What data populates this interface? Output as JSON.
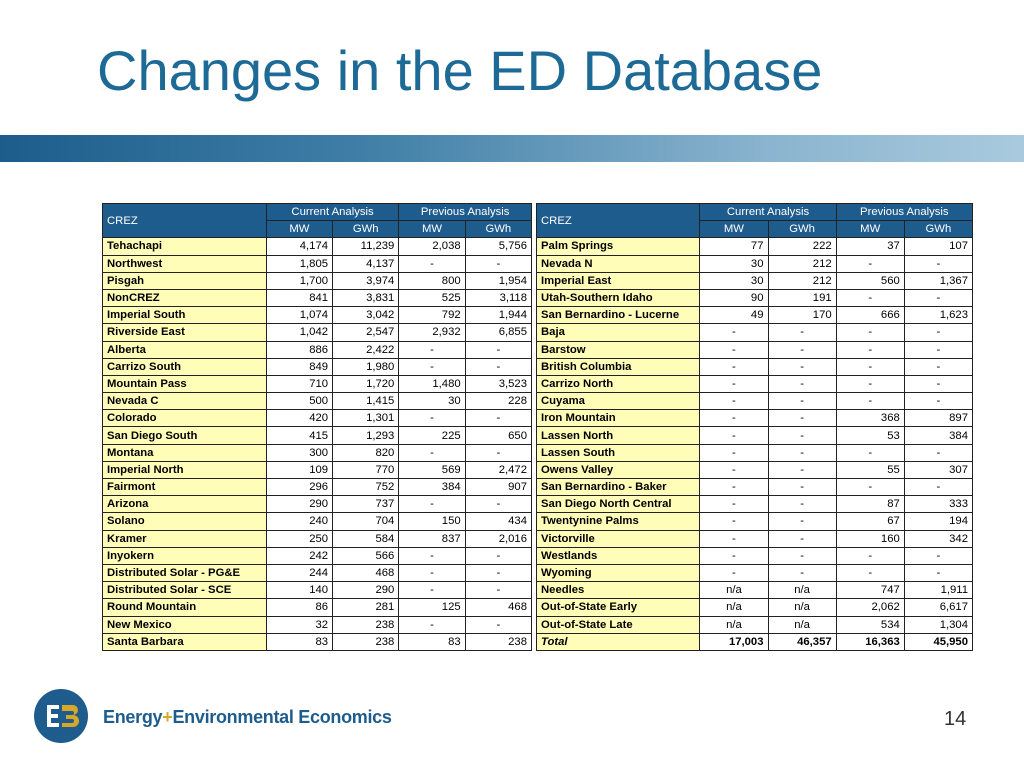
{
  "slide": {
    "title": "Changes in the ED Database",
    "page_number": "14",
    "company": {
      "part1": "Energy",
      "plus": "+",
      "part2": "Environmental Economics"
    }
  },
  "headers": {
    "crez": "CREZ",
    "current": "Current Analysis",
    "previous": "Previous Analysis",
    "mw": "MW",
    "gwh": "GWh"
  },
  "left_rows": [
    [
      "Tehachapi",
      "4,174",
      "11,239",
      "2,038",
      "5,756"
    ],
    [
      "Northwest",
      "1,805",
      "4,137",
      "-",
      "-"
    ],
    [
      "Pisgah",
      "1,700",
      "3,974",
      "800",
      "1,954"
    ],
    [
      "NonCREZ",
      "841",
      "3,831",
      "525",
      "3,118"
    ],
    [
      "Imperial South",
      "1,074",
      "3,042",
      "792",
      "1,944"
    ],
    [
      "Riverside East",
      "1,042",
      "2,547",
      "2,932",
      "6,855"
    ],
    [
      "Alberta",
      "886",
      "2,422",
      "-",
      "-"
    ],
    [
      "Carrizo South",
      "849",
      "1,980",
      "-",
      "-"
    ],
    [
      "Mountain Pass",
      "710",
      "1,720",
      "1,480",
      "3,523"
    ],
    [
      "Nevada C",
      "500",
      "1,415",
      "30",
      "228"
    ],
    [
      "Colorado",
      "420",
      "1,301",
      "-",
      "-"
    ],
    [
      "San Diego South",
      "415",
      "1,293",
      "225",
      "650"
    ],
    [
      "Montana",
      "300",
      "820",
      "-",
      "-"
    ],
    [
      "Imperial North",
      "109",
      "770",
      "569",
      "2,472"
    ],
    [
      "Fairmont",
      "296",
      "752",
      "384",
      "907"
    ],
    [
      "Arizona",
      "290",
      "737",
      "-",
      "-"
    ],
    [
      "Solano",
      "240",
      "704",
      "150",
      "434"
    ],
    [
      "Kramer",
      "250",
      "584",
      "837",
      "2,016"
    ],
    [
      "Inyokern",
      "242",
      "566",
      "-",
      "-"
    ],
    [
      "Distributed Solar - PG&E",
      "244",
      "468",
      "-",
      "-"
    ],
    [
      "Distributed Solar - SCE",
      "140",
      "290",
      "-",
      "-"
    ],
    [
      "Round Mountain",
      "86",
      "281",
      "125",
      "468"
    ],
    [
      "New Mexico",
      "32",
      "238",
      "-",
      "-"
    ],
    [
      "Santa Barbara",
      "83",
      "238",
      "83",
      "238"
    ]
  ],
  "right_rows": [
    [
      "Palm Springs",
      "77",
      "222",
      "37",
      "107"
    ],
    [
      "Nevada N",
      "30",
      "212",
      "-",
      "-"
    ],
    [
      "Imperial East",
      "30",
      "212",
      "560",
      "1,367"
    ],
    [
      "Utah-Southern Idaho",
      "90",
      "191",
      "-",
      "-"
    ],
    [
      "San Bernardino - Lucerne",
      "49",
      "170",
      "666",
      "1,623"
    ],
    [
      "Baja",
      "-",
      "-",
      "-",
      "-"
    ],
    [
      "Barstow",
      "-",
      "-",
      "-",
      "-"
    ],
    [
      "British Columbia",
      "-",
      "-",
      "-",
      "-"
    ],
    [
      "Carrizo North",
      "-",
      "-",
      "-",
      "-"
    ],
    [
      "Cuyama",
      "-",
      "-",
      "-",
      "-"
    ],
    [
      "Iron Mountain",
      "-",
      "-",
      "368",
      "897"
    ],
    [
      "Lassen North",
      "-",
      "-",
      "53",
      "384"
    ],
    [
      "Lassen South",
      "-",
      "-",
      "-",
      "-"
    ],
    [
      "Owens Valley",
      "-",
      "-",
      "55",
      "307"
    ],
    [
      "San Bernardino - Baker",
      "-",
      "-",
      "-",
      "-"
    ],
    [
      "San Diego North Central",
      "-",
      "-",
      "87",
      "333"
    ],
    [
      "Twentynine Palms",
      "-",
      "-",
      "67",
      "194"
    ],
    [
      "Victorville",
      "-",
      "-",
      "160",
      "342"
    ],
    [
      "Westlands",
      "-",
      "-",
      "-",
      "-"
    ],
    [
      "Wyoming",
      "-",
      "-",
      "-",
      "-"
    ],
    [
      "Needles",
      "n/a",
      "n/a",
      "747",
      "1,911"
    ],
    [
      "Out-of-State Early",
      "n/a",
      "n/a",
      "2,062",
      "6,617"
    ],
    [
      "Out-of-State Late",
      "n/a",
      "n/a",
      "534",
      "1,304"
    ],
    [
      "Total",
      "17,003",
      "46,357",
      "16,363",
      "45,950"
    ]
  ],
  "colors": {
    "title": "#1e6a96",
    "header_bg": "#1f5c8e",
    "name_bg": "#fffdb8",
    "logo_blue": "#1f5c8e",
    "logo_gold": "#d7a72a"
  }
}
